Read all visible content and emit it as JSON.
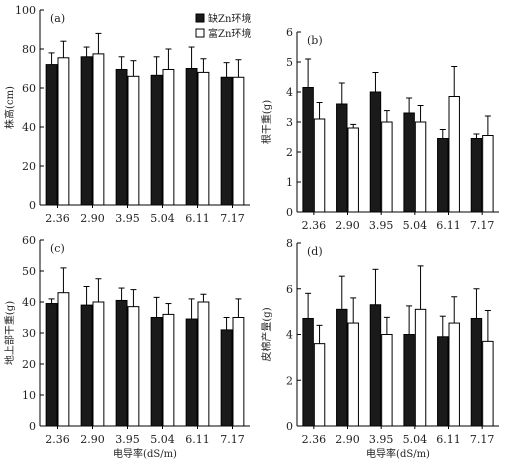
{
  "legend": [
    "缺Zn环境",
    "富Zn环境"
  ],
  "colors": {
    "deficient": "#1a1a1a",
    "rich": "#ffffff",
    "axis": "#000000"
  },
  "chart_data": [
    {
      "type": "bar",
      "panel": "(a)",
      "ylabel": "株高(cm)",
      "xlabel": "",
      "ylim": [
        0,
        100
      ],
      "yticks": [
        0,
        20,
        40,
        60,
        80,
        100
      ],
      "categories": [
        "2.36",
        "2.90",
        "3.95",
        "5.04",
        "6.11",
        "7.17"
      ],
      "legend_position": "top-right",
      "series": [
        {
          "name": "缺Zn环境",
          "values": [
            72,
            76,
            69.5,
            66.5,
            70,
            65.5
          ],
          "err": [
            6,
            5,
            6.5,
            9.5,
            11,
            7.5
          ]
        },
        {
          "name": "富Zn环境",
          "values": [
            75.5,
            77.5,
            66,
            69.5,
            68,
            65.5
          ],
          "err": [
            8.5,
            10.5,
            8,
            10.5,
            7,
            9
          ]
        }
      ]
    },
    {
      "type": "bar",
      "panel": "(b)",
      "ylabel": "根干重(g)",
      "xlabel": "",
      "ylim": [
        0,
        6
      ],
      "yticks": [
        0,
        1,
        2,
        3,
        4,
        5,
        6
      ],
      "categories": [
        "2.36",
        "2.90",
        "3.95",
        "5.04",
        "6.11",
        "7.17"
      ],
      "series": [
        {
          "name": "缺Zn环境",
          "values": [
            4.15,
            3.6,
            4.0,
            3.3,
            2.45,
            2.45
          ],
          "err": [
            0.95,
            0.7,
            0.65,
            0.5,
            0.3,
            0.15
          ]
        },
        {
          "name": "富Zn环境",
          "values": [
            3.1,
            2.8,
            3.0,
            3.0,
            3.85,
            2.55
          ],
          "err": [
            0.55,
            0.12,
            0.38,
            0.55,
            1.0,
            0.65
          ]
        }
      ]
    },
    {
      "type": "bar",
      "panel": "(c)",
      "ylabel": "地上部干重(g)",
      "xlabel": "电导率(dS/m)",
      "ylim": [
        0,
        60
      ],
      "yticks": [
        0,
        10,
        20,
        30,
        40,
        50,
        60
      ],
      "categories": [
        "2.36",
        "2.90",
        "3.95",
        "5.04",
        "6.11",
        "7.17"
      ],
      "series": [
        {
          "name": "缺Zn环境",
          "values": [
            39.5,
            39,
            40.5,
            35,
            34.5,
            31
          ],
          "err": [
            1.5,
            6,
            4,
            6.5,
            6.5,
            4
          ]
        },
        {
          "name": "富Zn环境",
          "values": [
            43,
            40,
            38.5,
            36,
            40,
            35
          ],
          "err": [
            8,
            7.5,
            5.5,
            3.5,
            2.5,
            6
          ]
        }
      ]
    },
    {
      "type": "bar",
      "panel": "(d)",
      "ylabel": "皮棉产量(g)",
      "xlabel": "电导率(dS/m)",
      "ylim": [
        0,
        8
      ],
      "yticks": [
        0,
        2,
        4,
        6,
        8
      ],
      "categories": [
        "2.36",
        "2.90",
        "3.95",
        "5.04",
        "6.11",
        "7.17"
      ],
      "series": [
        {
          "name": "缺Zn环境",
          "values": [
            4.7,
            5.1,
            5.3,
            4.0,
            3.9,
            4.7
          ],
          "err": [
            1.1,
            1.45,
            1.55,
            1.25,
            0.9,
            1.3
          ]
        },
        {
          "name": "富Zn环境",
          "values": [
            3.6,
            4.5,
            4.0,
            5.1,
            4.5,
            3.7
          ],
          "err": [
            0.8,
            1.1,
            0.75,
            1.9,
            1.15,
            1.35
          ]
        }
      ]
    }
  ]
}
